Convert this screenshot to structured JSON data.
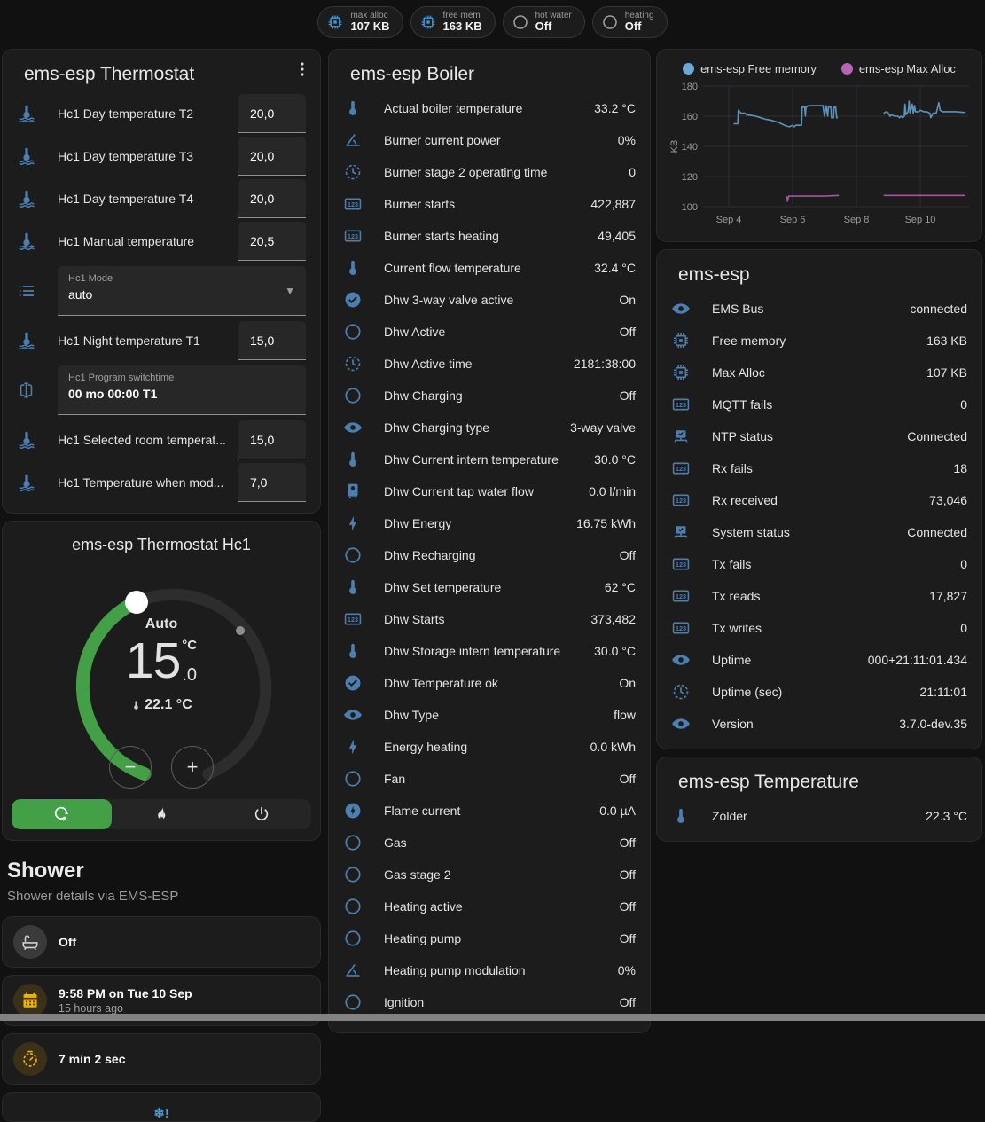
{
  "badges": [
    {
      "icon": "chip-icon",
      "icon_color": "#3d9be0",
      "label": "max alloc",
      "value": "107 KB"
    },
    {
      "icon": "chip-icon",
      "icon_color": "#3d9be0",
      "label": "free mem",
      "value": "163 KB"
    },
    {
      "icon": "circle-icon",
      "icon_color": "#9e9e9e",
      "label": "hot water",
      "value": "Off"
    },
    {
      "icon": "circle-icon",
      "icon_color": "#9e9e9e",
      "label": "heating",
      "value": "Off"
    }
  ],
  "thermostat_card": {
    "title": "ems-esp Thermostat",
    "rows": [
      {
        "type": "number",
        "icon": "thermometer-water-icon",
        "label": "Hc1 Day temperature T2",
        "value": "20,0"
      },
      {
        "type": "number",
        "icon": "thermometer-water-icon",
        "label": "Hc1 Day temperature T3",
        "value": "20,0"
      },
      {
        "type": "number",
        "icon": "thermometer-water-icon",
        "label": "Hc1 Day temperature T4",
        "value": "20,0"
      },
      {
        "type": "number",
        "icon": "thermometer-water-icon",
        "label": "Hc1 Manual temperature",
        "value": "20,5"
      },
      {
        "type": "select",
        "icon": "list-icon",
        "label": "Hc1 Mode",
        "value": "auto"
      },
      {
        "type": "number",
        "icon": "thermometer-water-icon",
        "label": "Hc1 Night temperature T1",
        "value": "15,0"
      },
      {
        "type": "text",
        "icon": "textbox-icon",
        "label": "Hc1 Program switchtime",
        "value": "00 mo 00:00 T1"
      },
      {
        "type": "number",
        "icon": "thermometer-water-icon",
        "label": "Hc1 Selected room temperat...",
        "value": "15,0"
      },
      {
        "type": "number",
        "icon": "thermometer-water-icon",
        "label": "Hc1 Temperature when mod...",
        "value": "7,0"
      }
    ]
  },
  "dial_card": {
    "title": "ems-esp Thermostat Hc1",
    "mode_label": "Auto",
    "target_whole": "15",
    "target_decimal": ".0",
    "target_unit": "°C",
    "current_label": "22.1 °C",
    "decrease_label": "−",
    "increase_label": "+",
    "accent_color": "#43a047",
    "modes": [
      {
        "icon": "auto-icon",
        "active": true
      },
      {
        "icon": "fire-icon",
        "active": false
      },
      {
        "icon": "power-icon",
        "active": false
      }
    ]
  },
  "shower_section": {
    "title": "Shower",
    "subtitle": "Shower details via EMS-ESP",
    "tiles": [
      {
        "icon": "bathtub-icon",
        "style": "grey",
        "primary": "Off",
        "secondary": ""
      },
      {
        "icon": "calendar-icon",
        "style": "amber",
        "primary": "9:58 PM on Tue 10 Sep",
        "secondary": "15 hours ago"
      },
      {
        "icon": "timer-icon",
        "style": "amber",
        "primary": "7 min 2 sec",
        "secondary": ""
      }
    ],
    "alert_glyph": "❄!"
  },
  "boiler_card": {
    "title": "ems-esp Boiler",
    "rows": [
      {
        "icon": "thermometer-icon",
        "label": "Actual boiler temperature",
        "value": "33.2 °C"
      },
      {
        "icon": "angle-icon",
        "label": "Burner current power",
        "value": "0%"
      },
      {
        "icon": "clock-icon",
        "label": "Burner stage 2 operating time",
        "value": "0"
      },
      {
        "icon": "counter-icon",
        "label": "Burner starts",
        "value": "422,887"
      },
      {
        "icon": "counter-icon",
        "label": "Burner starts heating",
        "value": "49,405"
      },
      {
        "icon": "thermometer-icon",
        "label": "Current flow temperature",
        "value": "32.4 °C"
      },
      {
        "icon": "check-circle-icon",
        "label": "Dhw 3-way valve active",
        "value": "On"
      },
      {
        "icon": "circle-icon",
        "label": "Dhw Active",
        "value": "Off"
      },
      {
        "icon": "clock-icon",
        "label": "Dhw Active time",
        "value": "2181:38:00"
      },
      {
        "icon": "circle-icon",
        "label": "Dhw Charging",
        "value": "Off"
      },
      {
        "icon": "eye-icon",
        "label": "Dhw Charging type",
        "value": "3-way valve"
      },
      {
        "icon": "thermometer-icon",
        "label": "Dhw Current intern temperature",
        "value": "30.0 °C"
      },
      {
        "icon": "water-heater-icon",
        "label": "Dhw Current tap water flow",
        "value": "0.0 l/min"
      },
      {
        "icon": "flash-icon",
        "label": "Dhw Energy",
        "value": "16.75 kWh"
      },
      {
        "icon": "circle-icon",
        "label": "Dhw Recharging",
        "value": "Off"
      },
      {
        "icon": "thermometer-icon",
        "label": "Dhw Set temperature",
        "value": "62 °C"
      },
      {
        "icon": "counter-icon",
        "label": "Dhw Starts",
        "value": "373,482"
      },
      {
        "icon": "thermometer-icon",
        "label": "Dhw Storage intern temperature",
        "value": "30.0 °C"
      },
      {
        "icon": "check-circle-icon",
        "label": "Dhw Temperature ok",
        "value": "On"
      },
      {
        "icon": "eye-icon",
        "label": "Dhw Type",
        "value": "flow"
      },
      {
        "icon": "flash-icon",
        "label": "Energy heating",
        "value": "0.0 kWh"
      },
      {
        "icon": "circle-icon",
        "label": "Fan",
        "value": "Off"
      },
      {
        "icon": "flash-circle-icon",
        "label": "Flame current",
        "value": "0.0 µA"
      },
      {
        "icon": "circle-icon",
        "label": "Gas",
        "value": "Off"
      },
      {
        "icon": "circle-icon",
        "label": "Gas stage 2",
        "value": "Off"
      },
      {
        "icon": "circle-icon",
        "label": "Heating active",
        "value": "Off"
      },
      {
        "icon": "circle-icon",
        "label": "Heating pump",
        "value": "Off"
      },
      {
        "icon": "angle-icon",
        "label": "Heating pump modulation",
        "value": "0%"
      },
      {
        "icon": "circle-icon",
        "label": "Ignition",
        "value": "Off"
      }
    ]
  },
  "chart_data": {
    "type": "line",
    "title": "",
    "xlabel": "",
    "ylabel": "KB",
    "unit": "KB",
    "grid": true,
    "legend_position": "top",
    "yrange": [
      100,
      180
    ],
    "y_ticks": [
      100,
      120,
      140,
      160,
      180
    ],
    "xrange": [
      3.05,
      11.45
    ],
    "x_ticks": [
      {
        "x": 4,
        "label": "Sep 4"
      },
      {
        "x": 6,
        "label": "Sep 6"
      },
      {
        "x": 8,
        "label": "Sep 8"
      },
      {
        "x": 10,
        "label": "Sep 10"
      }
    ],
    "series": [
      {
        "name": "ems-esp Free memory",
        "color": "#5d93bb",
        "points": [
          [
            4.15,
            155
          ],
          [
            4.28,
            155
          ],
          [
            4.3,
            164
          ],
          [
            4.38,
            162
          ],
          [
            4.5,
            162
          ],
          [
            4.55,
            161
          ],
          [
            4.7,
            160.5
          ],
          [
            4.85,
            160
          ],
          [
            5.0,
            159
          ],
          [
            5.15,
            158
          ],
          [
            5.3,
            157.5
          ],
          [
            5.45,
            156.5
          ],
          [
            5.55,
            156
          ],
          [
            5.65,
            155
          ],
          [
            5.7,
            154.5
          ],
          [
            5.8,
            153.5
          ],
          [
            5.9,
            153
          ],
          [
            6.0,
            154
          ],
          [
            6.05,
            153
          ],
          [
            6.1,
            154
          ],
          [
            6.28,
            154
          ],
          [
            6.3,
            166
          ],
          [
            6.38,
            166
          ],
          [
            6.4,
            160
          ],
          [
            6.42,
            166
          ],
          [
            6.5,
            167
          ],
          [
            6.95,
            167
          ],
          [
            7.0,
            160
          ],
          [
            7.05,
            167
          ],
          [
            7.1,
            160
          ],
          [
            7.12,
            166
          ],
          [
            7.2,
            166
          ],
          [
            7.22,
            159
          ],
          [
            7.28,
            159
          ],
          [
            7.3,
            166
          ],
          [
            7.35,
            166
          ],
          [
            7.38,
            159
          ],
          [
            7.42,
            159
          ],
          null,
          [
            8.85,
            162
          ],
          [
            8.95,
            163
          ],
          [
            9.0,
            162
          ],
          [
            9.05,
            160
          ],
          [
            9.1,
            161
          ],
          [
            9.2,
            160
          ],
          [
            9.3,
            160
          ],
          [
            9.35,
            159
          ],
          [
            9.4,
            160
          ],
          [
            9.45,
            159
          ],
          [
            9.5,
            160
          ],
          [
            9.52,
            168
          ],
          [
            9.55,
            161
          ],
          [
            9.62,
            163
          ],
          [
            9.65,
            170
          ],
          [
            9.68,
            162
          ],
          [
            9.75,
            168
          ],
          [
            9.78,
            162
          ],
          [
            9.82,
            167
          ],
          [
            9.85,
            163
          ],
          [
            9.95,
            163
          ],
          [
            10.0,
            164
          ],
          [
            10.1,
            163
          ],
          [
            10.2,
            163
          ],
          [
            10.3,
            162
          ],
          [
            10.33,
            159
          ],
          [
            10.4,
            162
          ],
          [
            10.5,
            162
          ],
          [
            10.58,
            169
          ],
          [
            10.62,
            164
          ],
          [
            10.7,
            163
          ],
          [
            10.9,
            163
          ],
          [
            11.1,
            163
          ],
          [
            11.42,
            162.5
          ]
        ]
      },
      {
        "name": "ems-esp Max Alloc",
        "color": "#a155a1",
        "points": [
          [
            5.82,
            107
          ],
          [
            5.84,
            103.5
          ],
          [
            5.88,
            107
          ],
          [
            6.5,
            107
          ],
          [
            7.0,
            107
          ],
          [
            7.45,
            107.5
          ],
          null,
          [
            8.85,
            107.5
          ],
          [
            9.5,
            107.5
          ],
          [
            10.5,
            107.5
          ],
          [
            11.42,
            107.5
          ]
        ]
      }
    ]
  },
  "system_card": {
    "title": "ems-esp",
    "rows": [
      {
        "icon": "eye-icon",
        "label": "EMS Bus",
        "value": "connected"
      },
      {
        "icon": "chip-icon",
        "label": "Free memory",
        "value": "163 KB"
      },
      {
        "icon": "chip-icon",
        "label": "Max Alloc",
        "value": "107 KB"
      },
      {
        "icon": "counter-icon",
        "label": "MQTT fails",
        "value": "0"
      },
      {
        "icon": "network-icon",
        "label": "NTP status",
        "value": "Connected"
      },
      {
        "icon": "counter-icon",
        "label": "Rx fails",
        "value": "18"
      },
      {
        "icon": "counter-icon",
        "label": "Rx received",
        "value": "73,046"
      },
      {
        "icon": "network-icon",
        "label": "System status",
        "value": "Connected"
      },
      {
        "icon": "counter-icon",
        "label": "Tx fails",
        "value": "0"
      },
      {
        "icon": "counter-icon",
        "label": "Tx reads",
        "value": "17,827"
      },
      {
        "icon": "counter-icon",
        "label": "Tx writes",
        "value": "0"
      },
      {
        "icon": "eye-icon",
        "label": "Uptime",
        "value": "000+21:11:01.434"
      },
      {
        "icon": "clock-icon",
        "label": "Uptime (sec)",
        "value": "21:11:01"
      },
      {
        "icon": "eye-icon",
        "label": "Version",
        "value": "3.7.0-dev.35"
      }
    ]
  },
  "temperature_card": {
    "title": "ems-esp Temperature",
    "rows": [
      {
        "icon": "thermometer-icon",
        "label": "Zolder",
        "value": "22.3 °C"
      }
    ]
  }
}
